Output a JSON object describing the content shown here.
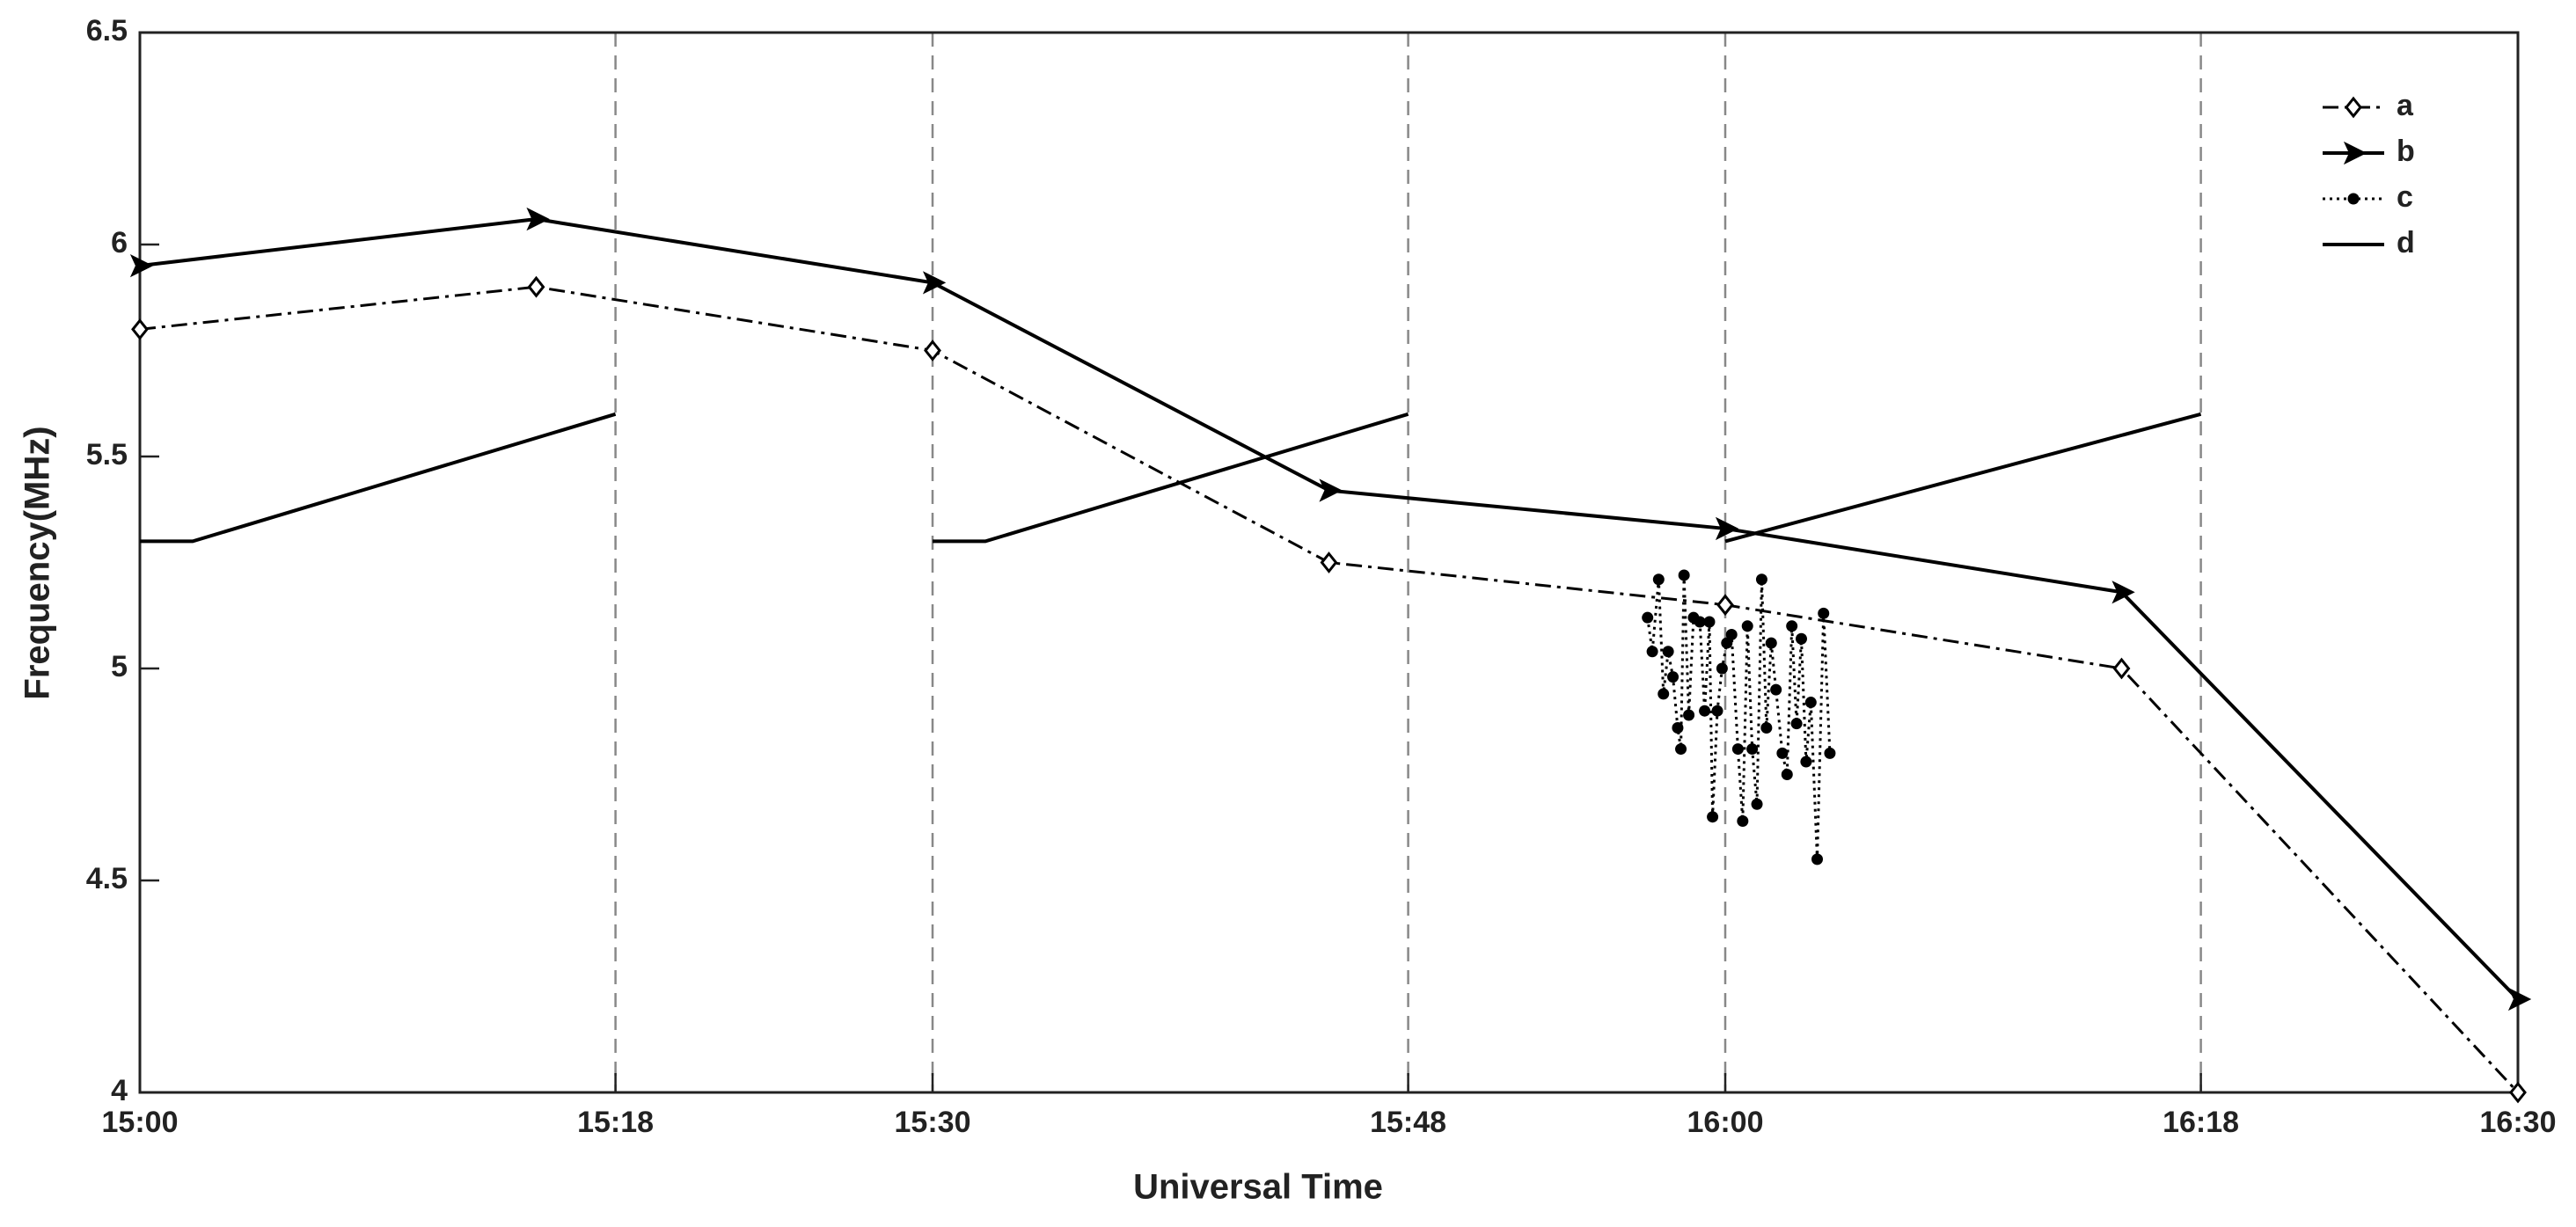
{
  "chart_data": {
    "type": "line",
    "xlabel": "Universal Time",
    "ylabel": "Frequency(MHz)",
    "xlim": [
      15,
      16.5
    ],
    "xticks": [
      {
        "value": 15,
        "label": "15:00"
      },
      {
        "value": 15.3,
        "label": "15:18"
      },
      {
        "value": 15.5,
        "label": "15:30"
      },
      {
        "value": 15.8,
        "label": "15:48"
      },
      {
        "value": 16,
        "label": "16:00"
      },
      {
        "value": 16.3,
        "label": "16:18"
      },
      {
        "value": 16.5,
        "label": "16:30"
      }
    ],
    "ylim": [
      4,
      6.5
    ],
    "yticks": [
      4,
      4.5,
      5,
      5.5,
      6,
      6.5
    ],
    "grid": true,
    "legend": "upper right",
    "series": [
      {
        "name": "a",
        "color": "#000000",
        "marker": "diamond",
        "line_style": "dashdot",
        "x": [
          15,
          15.25,
          15.5,
          15.75,
          16,
          16.25,
          16.5
        ],
        "values": [
          5.8,
          5.9,
          5.75,
          5.25,
          5.15,
          5.0,
          4.0
        ]
      },
      {
        "name": "b",
        "color": "#000000",
        "marker": "triangle-right",
        "line_style": "solid",
        "x": [
          15,
          15.25,
          15.5,
          15.75,
          16,
          16.25,
          16.5
        ],
        "values": [
          5.95,
          6.06,
          5.91,
          5.42,
          5.33,
          5.18,
          4.22
        ]
      },
      {
        "name": "c",
        "color": "#000000",
        "marker": "dot",
        "line_style": "dotted",
        "x": [
          15.951,
          15.954,
          15.958,
          15.961,
          15.964,
          15.967,
          15.97,
          15.972,
          15.974,
          15.977,
          15.98,
          15.984,
          15.987,
          15.99,
          15.992,
          15.995,
          15.998,
          16.001,
          16.004,
          16.008,
          16.011,
          16.014,
          16.017,
          16.02,
          16.023,
          16.026,
          16.029,
          16.032,
          16.036,
          16.039,
          16.042,
          16.045,
          16.048,
          16.051,
          16.054,
          16.058,
          16.062,
          16.066
        ],
        "values": [
          5.12,
          5.04,
          5.21,
          4.94,
          5.04,
          4.98,
          4.86,
          4.81,
          5.22,
          4.89,
          5.12,
          5.11,
          4.9,
          5.11,
          4.65,
          4.9,
          5.0,
          5.06,
          5.08,
          4.81,
          4.64,
          5.1,
          4.81,
          4.68,
          5.21,
          4.86,
          5.06,
          4.95,
          4.8,
          4.75,
          5.1,
          4.87,
          5.07,
          4.78,
          4.92,
          4.55,
          5.13,
          4.8
        ]
      },
      {
        "name": "d",
        "color": "#000000",
        "marker": "none",
        "line_style": "solid",
        "x": [
          15,
          15.0333,
          15.3,
          null,
          15.5,
          15.5333,
          15.8,
          null,
          16,
          16.3
        ],
        "values": [
          5.3,
          5.3,
          5.6,
          null,
          5.3,
          5.3,
          5.6,
          null,
          5.3,
          5.6
        ]
      }
    ]
  }
}
